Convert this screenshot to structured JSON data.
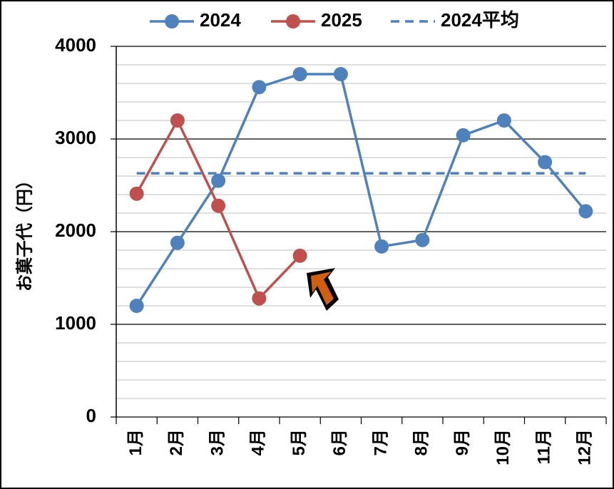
{
  "chart_data": {
    "type": "line",
    "y_label": "お菓子代（円）",
    "categories": [
      "1月",
      "2月",
      "3月",
      "4月",
      "5月",
      "6月",
      "7月",
      "8月",
      "9月",
      "10月",
      "11月",
      "12月"
    ],
    "series": [
      {
        "name": "2024",
        "color": "#4f81bd",
        "values": [
          1200,
          1880,
          2550,
          3560,
          3700,
          3700,
          1840,
          1910,
          3040,
          3200,
          2750,
          2220
        ]
      },
      {
        "name": "2025",
        "color": "#c0504d",
        "values": [
          2410,
          3200,
          2280,
          1280,
          1740,
          null,
          null,
          null,
          null,
          null,
          null,
          null
        ]
      },
      {
        "name": "2024平均",
        "color": "#4f81bd",
        "dashed": true,
        "values": [
          2630,
          2630,
          2630,
          2630,
          2630,
          2630,
          2630,
          2630,
          2630,
          2630,
          2630,
          2630
        ]
      }
    ],
    "ylim": [
      0,
      4000
    ],
    "yticks": [
      0,
      1000,
      2000,
      3000,
      4000
    ],
    "minor_yticks": [
      200,
      400,
      600,
      800,
      1200,
      1400,
      1600,
      1800,
      2200,
      2400,
      2600,
      2800,
      3200,
      3400,
      3600,
      3800
    ],
    "grid": true,
    "legend": "top"
  }
}
